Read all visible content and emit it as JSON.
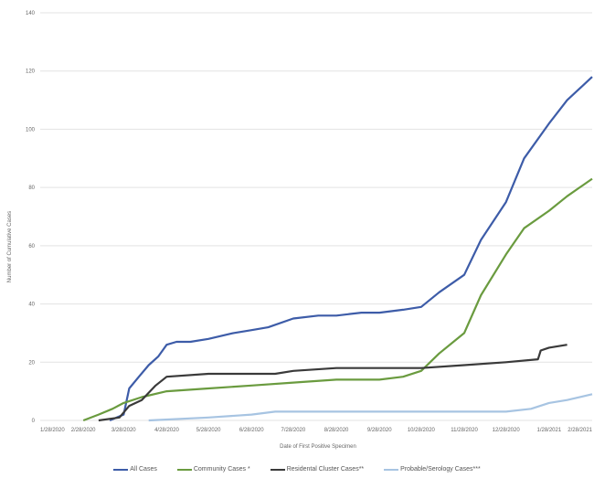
{
  "chart_data": {
    "type": "line",
    "title": "",
    "xlabel": "Date of First Positive Specimen",
    "ylabel": "Number of Cumulative Cases",
    "ylim": [
      0,
      140
    ],
    "y_ticks": [
      0,
      20,
      40,
      60,
      80,
      100,
      120,
      140
    ],
    "x_ticks": [
      "1/28/2020",
      "2/28/2020",
      "3/28/2020",
      "4/28/2020",
      "5/28/2020",
      "6/28/2020",
      "7/28/2020",
      "8/28/2020",
      "9/28/2020",
      "10/28/2020",
      "11/28/2020",
      "12/28/2020",
      "1/28/2021",
      "2/28/2021"
    ],
    "grid": "horizontal",
    "legend_position": "bottom",
    "series": [
      {
        "name": "All Cases",
        "color": "#3d5ca8",
        "x": [
          "3/18/2020",
          "3/28/2020",
          "4/1/2020",
          "4/8/2020",
          "4/15/2020",
          "4/22/2020",
          "4/28/2020",
          "5/5/2020",
          "5/15/2020",
          "5/28/2020",
          "6/15/2020",
          "6/28/2020",
          "7/10/2020",
          "7/28/2020",
          "8/15/2020",
          "8/28/2020",
          "9/15/2020",
          "9/28/2020",
          "10/15/2020",
          "10/28/2020",
          "11/10/2020",
          "11/28/2020",
          "12/10/2020",
          "12/28/2020",
          "1/10/2021",
          "1/28/2021",
          "2/10/2021",
          "2/28/2021"
        ],
        "y": [
          0,
          2,
          11,
          15,
          19,
          22,
          26,
          27,
          27,
          28,
          30,
          31,
          32,
          35,
          36,
          36,
          37,
          37,
          38,
          39,
          44,
          50,
          62,
          75,
          90,
          102,
          110,
          118
        ]
      },
      {
        "name": "Community Cases *",
        "color": "#6a9b3f",
        "x": [
          "2/28/2020",
          "3/10/2020",
          "3/20/2020",
          "3/28/2020",
          "4/10/2020",
          "4/28/2020",
          "5/28/2020",
          "6/28/2020",
          "7/28/2020",
          "8/28/2020",
          "9/28/2020",
          "10/15/2020",
          "10/28/2020",
          "11/10/2020",
          "11/28/2020",
          "12/10/2020",
          "12/28/2020",
          "1/10/2021",
          "1/28/2021",
          "2/10/2021",
          "2/28/2021"
        ],
        "y": [
          0,
          2,
          4,
          6,
          8,
          10,
          11,
          12,
          13,
          14,
          14,
          15,
          17,
          23,
          30,
          43,
          57,
          66,
          72,
          77,
          83
        ]
      },
      {
        "name": "Residental Cluster Cases**",
        "color": "#3a3a3a",
        "x": [
          "3/10/2020",
          "3/25/2020",
          "4/1/2020",
          "4/10/2020",
          "4/20/2020",
          "4/28/2020",
          "5/28/2020",
          "6/28/2020",
          "7/15/2020",
          "7/28/2020",
          "8/28/2020",
          "9/28/2020",
          "10/28/2020",
          "11/28/2020",
          "12/28/2020",
          "1/20/2021",
          "1/22/2021",
          "1/28/2021",
          "2/10/2021"
        ],
        "y": [
          0,
          1,
          5,
          7,
          12,
          15,
          16,
          16,
          16,
          17,
          18,
          18,
          18,
          19,
          20,
          21,
          24,
          25,
          26
        ]
      },
      {
        "name": "Probable/Serology Cases***",
        "color": "#a7c4e2",
        "x": [
          "4/15/2020",
          "5/28/2020",
          "6/28/2020",
          "7/15/2020",
          "7/28/2020",
          "8/28/2020",
          "9/28/2020",
          "10/28/2020",
          "11/28/2020",
          "12/28/2020",
          "1/15/2021",
          "1/28/2021",
          "2/10/2021",
          "2/28/2021"
        ],
        "y": [
          0,
          1,
          2,
          3,
          3,
          3,
          3,
          3,
          3,
          3,
          4,
          6,
          7,
          9
        ]
      }
    ]
  }
}
